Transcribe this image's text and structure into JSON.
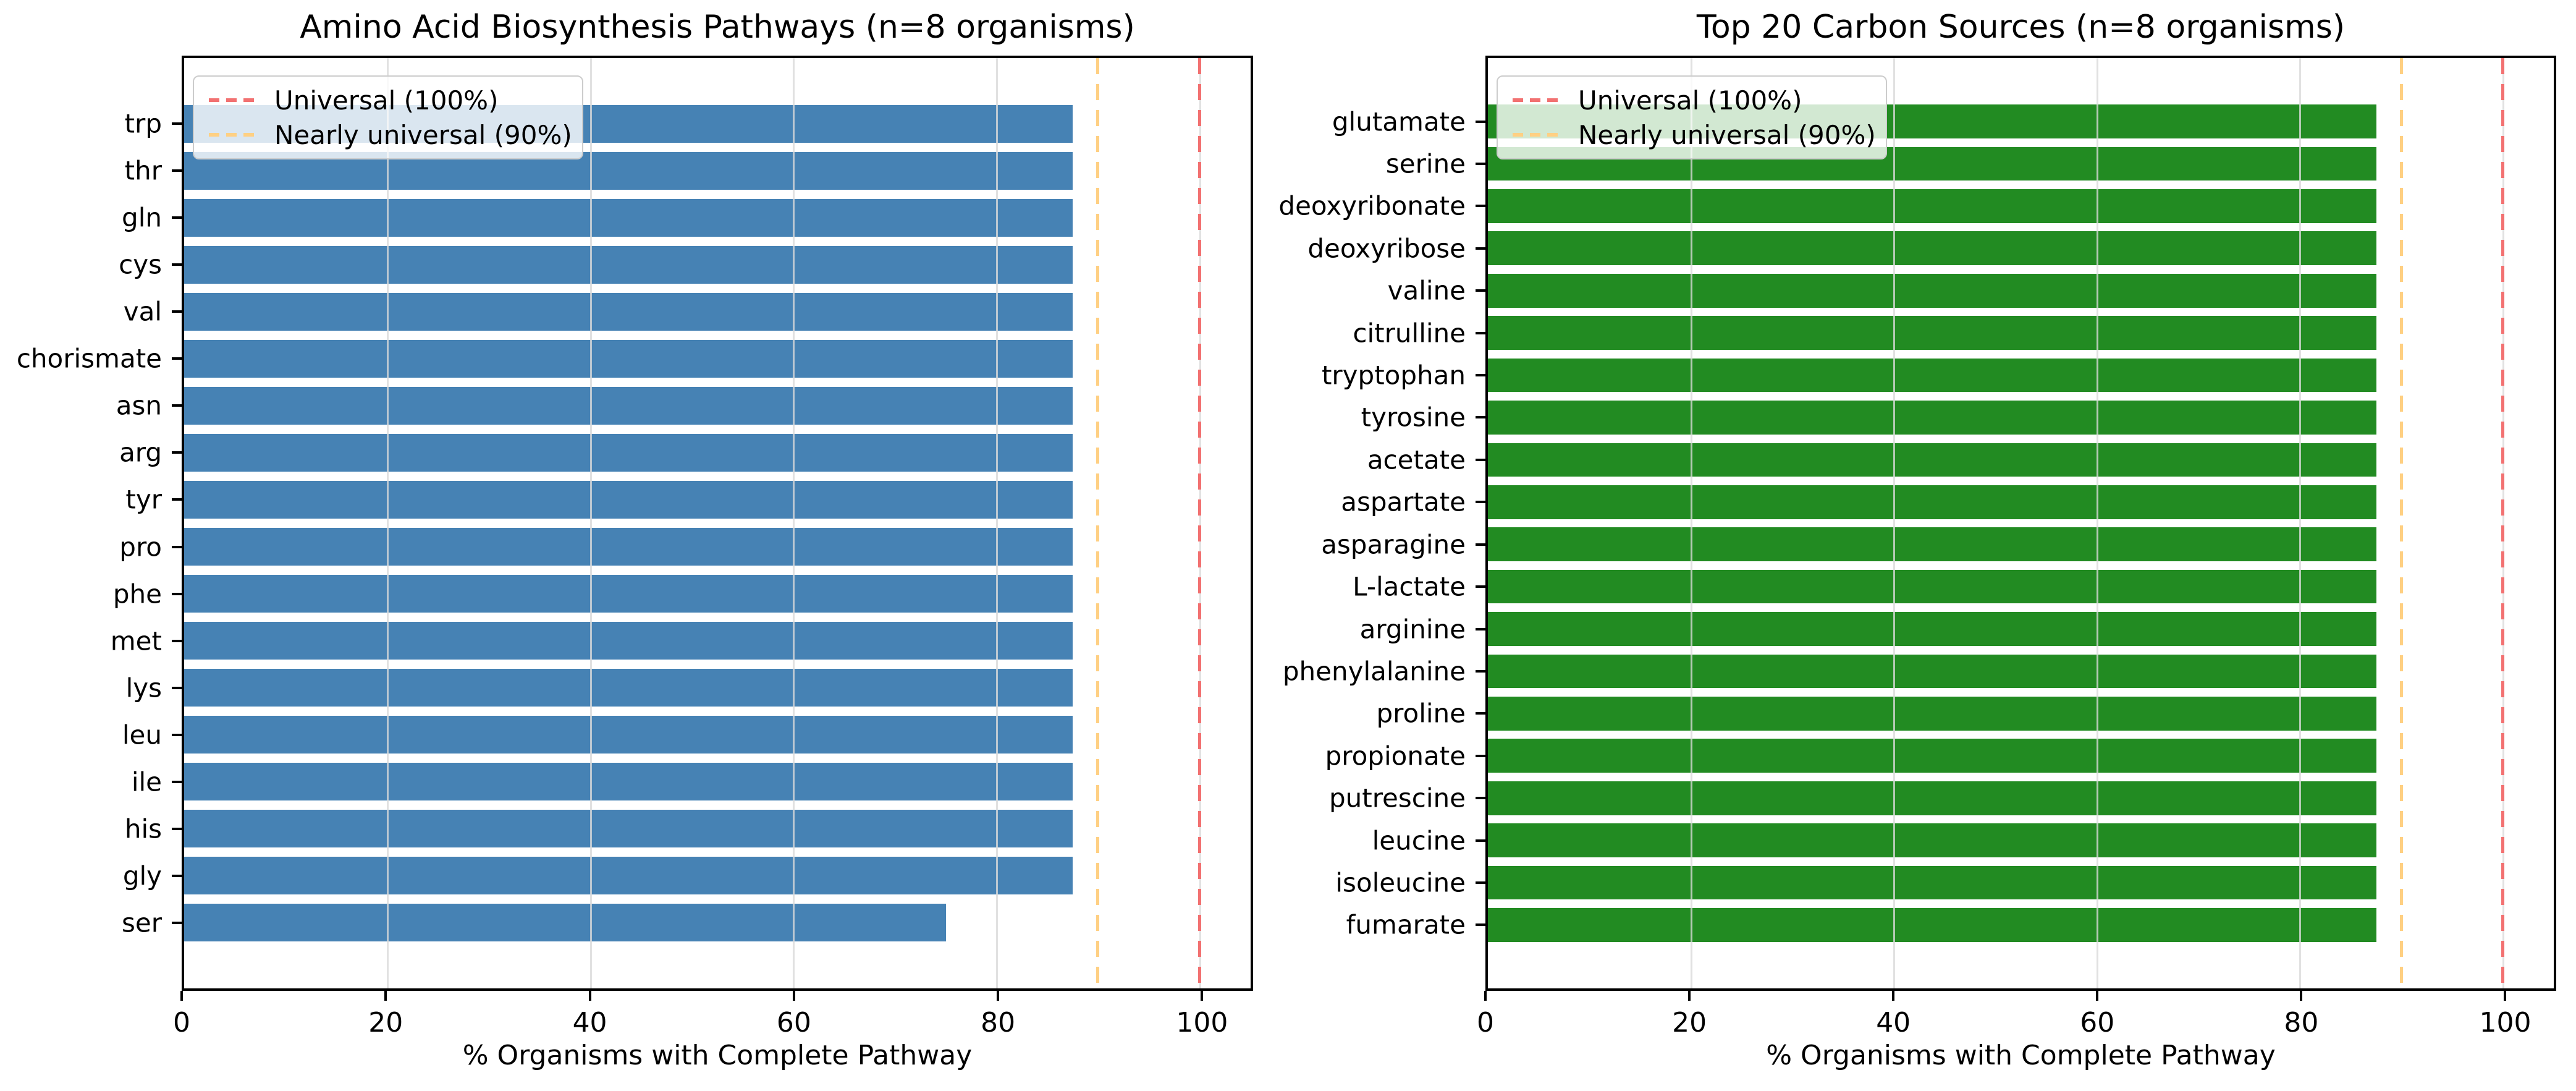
{
  "figure": {
    "background": "#ffffff",
    "grid_color": "#d9d9d9"
  },
  "legend": {
    "position": "upper left",
    "items": [
      {
        "label": "Universal (100%)",
        "value": 100,
        "color": "#f27171",
        "style": "dashed"
      },
      {
        "label": "Nearly universal (90%)",
        "value": 90,
        "color": "#ffd083",
        "style": "dashed"
      }
    ]
  },
  "chart_data": [
    {
      "type": "bar",
      "orientation": "horizontal",
      "title": "Amino Acid Biosynthesis Pathways (n=8 organisms)",
      "xlabel": "% Organisms with Complete Pathway",
      "bar_color": "#4682b4",
      "xlim": [
        0,
        105
      ],
      "x_ticks": [
        0,
        20,
        40,
        60,
        80,
        100
      ],
      "grid": true,
      "categories": [
        "trp",
        "thr",
        "gln",
        "cys",
        "val",
        "chorismate",
        "asn",
        "arg",
        "tyr",
        "pro",
        "phe",
        "met",
        "lys",
        "leu",
        "ile",
        "his",
        "gly",
        "ser"
      ],
      "values": [
        87.5,
        87.5,
        87.5,
        87.5,
        87.5,
        87.5,
        87.5,
        87.5,
        87.5,
        87.5,
        87.5,
        87.5,
        87.5,
        87.5,
        87.5,
        87.5,
        87.5,
        75.0
      ],
      "reference_lines": [
        {
          "label": "Universal (100%)",
          "value": 100,
          "color": "#f27171",
          "style": "dashed"
        },
        {
          "label": "Nearly universal (90%)",
          "value": 90,
          "color": "#ffd083",
          "style": "dashed"
        }
      ]
    },
    {
      "type": "bar",
      "orientation": "horizontal",
      "title": "Top 20 Carbon Sources (n=8 organisms)",
      "xlabel": "% Organisms with Complete Pathway",
      "bar_color": "#228b22",
      "xlim": [
        0,
        105
      ],
      "x_ticks": [
        0,
        20,
        40,
        60,
        80,
        100
      ],
      "grid": true,
      "categories": [
        "glutamate",
        "serine",
        "deoxyribonate",
        "deoxyribose",
        "valine",
        "citrulline",
        "tryptophan",
        "tyrosine",
        "acetate",
        "aspartate",
        "asparagine",
        "L-lactate",
        "arginine",
        "phenylalanine",
        "proline",
        "propionate",
        "putrescine",
        "leucine",
        "isoleucine",
        "fumarate"
      ],
      "values": [
        87.5,
        87.5,
        87.5,
        87.5,
        87.5,
        87.5,
        87.5,
        87.5,
        87.5,
        87.5,
        87.5,
        87.5,
        87.5,
        87.5,
        87.5,
        87.5,
        87.5,
        87.5,
        87.5,
        87.5
      ],
      "reference_lines": [
        {
          "label": "Universal (100%)",
          "value": 100,
          "color": "#f27171",
          "style": "dashed"
        },
        {
          "label": "Nearly universal (90%)",
          "value": 90,
          "color": "#ffd083",
          "style": "dashed"
        }
      ]
    }
  ]
}
